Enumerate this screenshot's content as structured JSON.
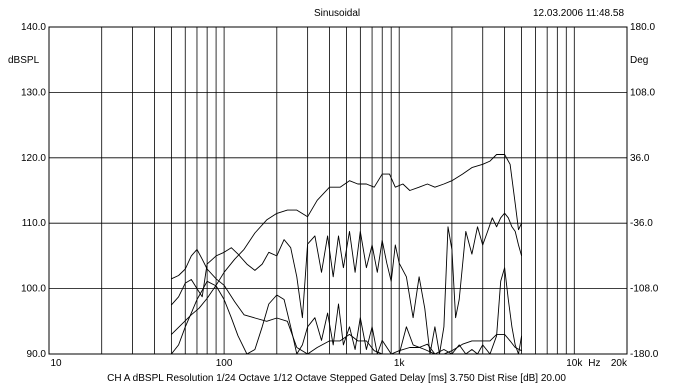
{
  "header": {
    "title": "Sinusoidal",
    "timestamp": "12.03.2006 11:48.58"
  },
  "footer": {
    "settings": "CH A   dBSPL   Resolution 1/24 Octave   1/12 Octave   Stepped   Gated   Delay [ms] 3.750   Dist Rise [dB] 20.00"
  },
  "chart_data": {
    "type": "line",
    "title": "Sinusoidal",
    "x_scale": "log",
    "xlim": [
      10,
      20000
    ],
    "x_ticks": [
      {
        "value": 10,
        "label": "10"
      },
      {
        "value": 100,
        "label": "100"
      },
      {
        "value": 1000,
        "label": "1k"
      },
      {
        "value": 10000,
        "label": "10k"
      },
      {
        "value": 20000,
        "label": "20k"
      }
    ],
    "x_unit": "Hz",
    "ylabel_left": "dBSPL",
    "ylim_left": [
      90,
      140
    ],
    "y_ticks_left": [
      "90.0",
      "100.0",
      "110.0",
      "120.0",
      "130.0",
      "140.0"
    ],
    "ylabel_right": "Deg",
    "ylim_right": [
      -180,
      180
    ],
    "y_ticks_right": [
      "-180.0",
      "-108.0",
      "-36.0",
      "36.0",
      "108.0",
      "180.0"
    ],
    "grid": true,
    "series": [
      {
        "axis": "left",
        "x": [
          50,
          57,
          65,
          72,
          80,
          90,
          100,
          115,
          130,
          150,
          175,
          200,
          230,
          260,
          300,
          340,
          400,
          460,
          520,
          580,
          650,
          720,
          800,
          880,
          950,
          1050,
          1150,
          1300,
          1450,
          1600,
          1800,
          2000,
          2300,
          2600,
          3000,
          3300,
          3600,
          4000,
          4300,
          4600,
          4800,
          5000
        ],
        "y": [
          93,
          94.5,
          96,
          97,
          98.5,
          100.5,
          102.5,
          104.5,
          106,
          108.5,
          110.5,
          111.5,
          112,
          112,
          111,
          113.5,
          115.5,
          115.5,
          116.5,
          116,
          116,
          115.5,
          117.5,
          117.5,
          115.5,
          116,
          115,
          115.5,
          116,
          115.5,
          116,
          116.5,
          117.5,
          118.5,
          119,
          119.5,
          120.5,
          120.5,
          119,
          113,
          109,
          110
        ]
      },
      {
        "axis": "left",
        "x": [
          50,
          55,
          60,
          65,
          70,
          75,
          80,
          90,
          100,
          115,
          130,
          150,
          175,
          200,
          230,
          260,
          300,
          340,
          400,
          460,
          520,
          580,
          650,
          720,
          800,
          900,
          1000,
          1150,
          1300,
          1450,
          1600,
          1800,
          2000,
          2300,
          2600,
          3000,
          3300,
          3600,
          4000,
          4300,
          4600,
          5000
        ],
        "y": [
          101.5,
          102,
          103,
          105,
          106,
          104.5,
          103,
          101.5,
          100.5,
          98,
          96,
          95.5,
          95,
          95.5,
          95,
          91,
          90,
          91,
          92,
          92,
          93,
          92,
          92,
          90.5,
          90,
          90,
          90.5,
          91,
          91,
          91.5,
          90,
          90,
          90.5,
          91.5,
          92,
          92,
          92,
          93,
          93,
          92,
          91,
          90.5
        ]
      },
      {
        "axis": "right",
        "x": [
          50,
          55,
          60,
          65,
          70,
          75,
          80,
          90,
          100,
          110,
          120,
          135,
          150,
          165,
          180,
          200,
          220,
          240,
          260,
          280,
          300,
          330,
          360,
          390,
          420,
          450,
          480,
          520,
          560,
          600,
          650,
          700,
          750,
          800,
          850,
          900,
          950,
          1000,
          1100,
          1200,
          1300,
          1400,
          1500,
          1600,
          1700,
          1800,
          1900,
          2000,
          2100,
          2200,
          2400,
          2600,
          2800,
          3000,
          3200,
          3400,
          3600,
          3800,
          4000,
          4200,
          4400,
          4600,
          4800,
          5000
        ],
        "y": [
          -126,
          -117,
          -102,
          -98,
          -108,
          -117,
          -81,
          -72,
          -68,
          -63,
          -70,
          -81,
          -88,
          -81,
          -68,
          -72,
          -54,
          -63,
          -95,
          -140,
          -59,
          -50,
          -90,
          -50,
          -95,
          -50,
          -85,
          -45,
          -90,
          -45,
          -85,
          -60,
          -90,
          -55,
          -80,
          -100,
          -60,
          -80,
          -95,
          -140,
          -95,
          -130,
          -180,
          -150,
          -180,
          -150,
          -40,
          -65,
          -140,
          -120,
          -45,
          -70,
          -40,
          -60,
          -45,
          -30,
          -40,
          -30,
          -25,
          -30,
          -40,
          -45,
          -60,
          -72
        ]
      },
      {
        "axis": "right",
        "x": [
          50,
          55,
          60,
          65,
          70,
          75,
          80,
          90,
          100,
          110,
          120,
          135,
          150,
          165,
          180,
          200,
          220,
          240,
          260,
          280,
          300,
          330,
          360,
          390,
          420,
          450,
          480,
          520,
          560,
          600,
          650,
          700,
          750,
          800,
          900,
          1000,
          1100,
          1200,
          1400,
          1600,
          1800,
          2000,
          2200,
          2400,
          2600,
          2800,
          3000,
          3300,
          3600,
          3800,
          4000,
          4200,
          4400,
          4600,
          4800,
          5000
        ],
        "y": [
          -180,
          -170,
          -150,
          -135,
          -120,
          -110,
          -100,
          -105,
          -120,
          -140,
          -160,
          -180,
          -175,
          -150,
          -125,
          -115,
          -120,
          -150,
          -180,
          -170,
          -150,
          -140,
          -165,
          -135,
          -170,
          -125,
          -170,
          -150,
          -175,
          -140,
          -175,
          -150,
          -180,
          -165,
          -180,
          -180,
          -150,
          -170,
          -175,
          -180,
          -175,
          -180,
          -170,
          -180,
          -175,
          -180,
          -170,
          -180,
          -160,
          -100,
          -85,
          -120,
          -150,
          -170,
          -180,
          -160
        ]
      }
    ]
  }
}
